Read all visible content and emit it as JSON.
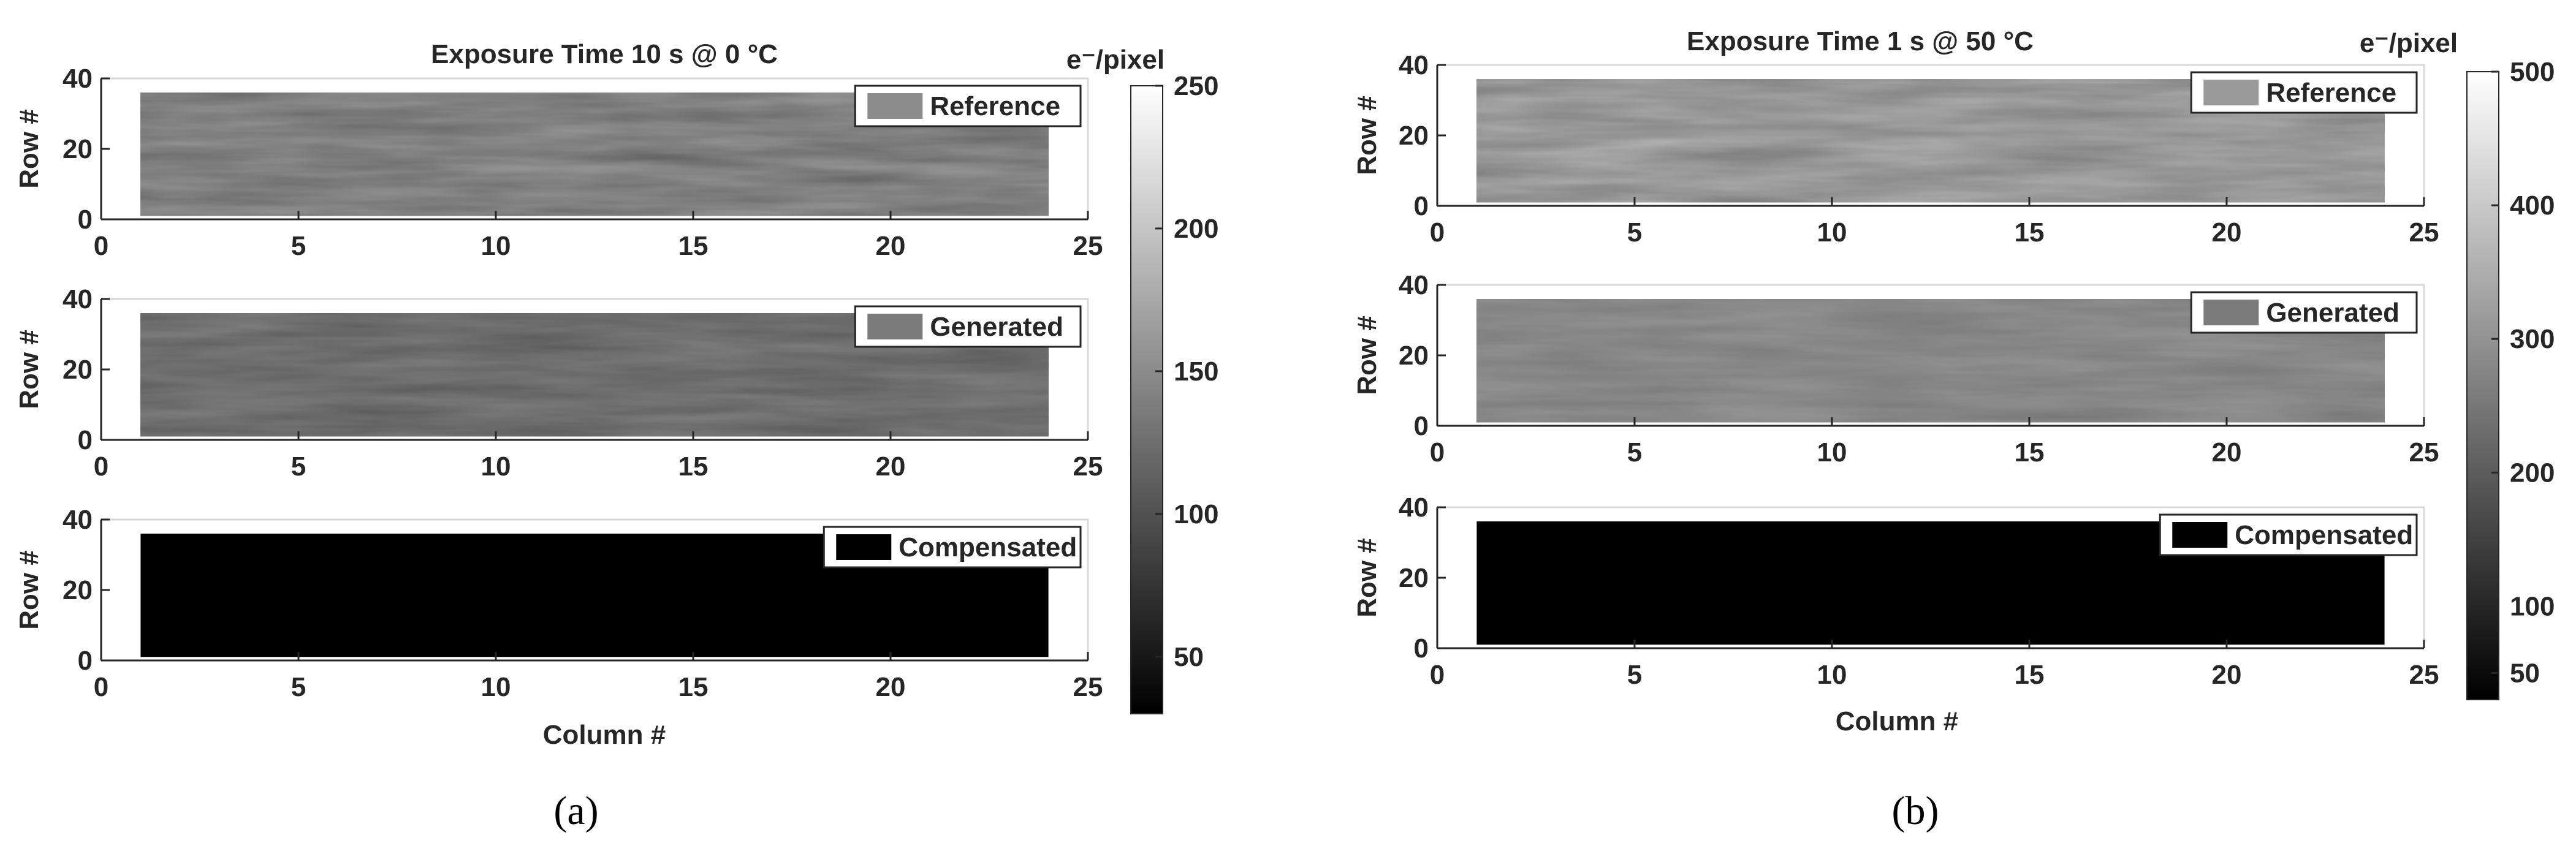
{
  "panel_labels": [
    "(a)",
    "(b)"
  ],
  "chart_data": [
    {
      "type": "heatmap",
      "panel": "(a)",
      "title": "Exposure Time 10 s @ 0 °C",
      "xlabel": "Column #",
      "ylabel": "Row #",
      "xlim": [
        0,
        25
      ],
      "ylim": [
        0,
        40
      ],
      "xticks": [
        0,
        5,
        10,
        15,
        20,
        25
      ],
      "yticks": [
        0,
        20,
        40
      ],
      "data_extent": {
        "x": [
          1,
          24
        ],
        "y": [
          1,
          36
        ]
      },
      "colormap": "gray",
      "colorbar": {
        "label": "e⁻/pixel",
        "range": [
          30,
          250
        ],
        "ticks": [
          50,
          100,
          150,
          200,
          250
        ]
      },
      "subplots": [
        {
          "legend": "Reference",
          "legend_color": "#8c8c8c",
          "mean_value": 140,
          "spread": 30
        },
        {
          "legend": "Generated",
          "legend_color": "#7a7a7a",
          "mean_value": 125,
          "spread": 22
        },
        {
          "legend": "Compensated",
          "legend_color": "#000000",
          "mean_value": 30,
          "spread": 0
        }
      ]
    },
    {
      "type": "heatmap",
      "panel": "(b)",
      "title": "Exposure Time 1 s @ 50 °C",
      "xlabel": "Column #",
      "ylabel": "Row #",
      "xlim": [
        0,
        25
      ],
      "ylim": [
        0,
        40
      ],
      "xticks": [
        0,
        5,
        10,
        15,
        20,
        25
      ],
      "yticks": [
        0,
        20,
        40
      ],
      "data_extent": {
        "x": [
          1,
          24
        ],
        "y": [
          1,
          36
        ]
      },
      "colormap": "gray",
      "colorbar": {
        "label": "e⁻/pixel",
        "range": [
          30,
          500
        ],
        "ticks": [
          50,
          100,
          200,
          300,
          400,
          500
        ]
      },
      "subplots": [
        {
          "legend": "Reference",
          "legend_color": "#9a9a9a",
          "mean_value": 310,
          "spread": 60
        },
        {
          "legend": "Generated",
          "legend_color": "#7a7a7a",
          "mean_value": 280,
          "spread": 35
        },
        {
          "legend": "Compensated",
          "legend_color": "#000000",
          "mean_value": 30,
          "spread": 0
        }
      ]
    }
  ]
}
